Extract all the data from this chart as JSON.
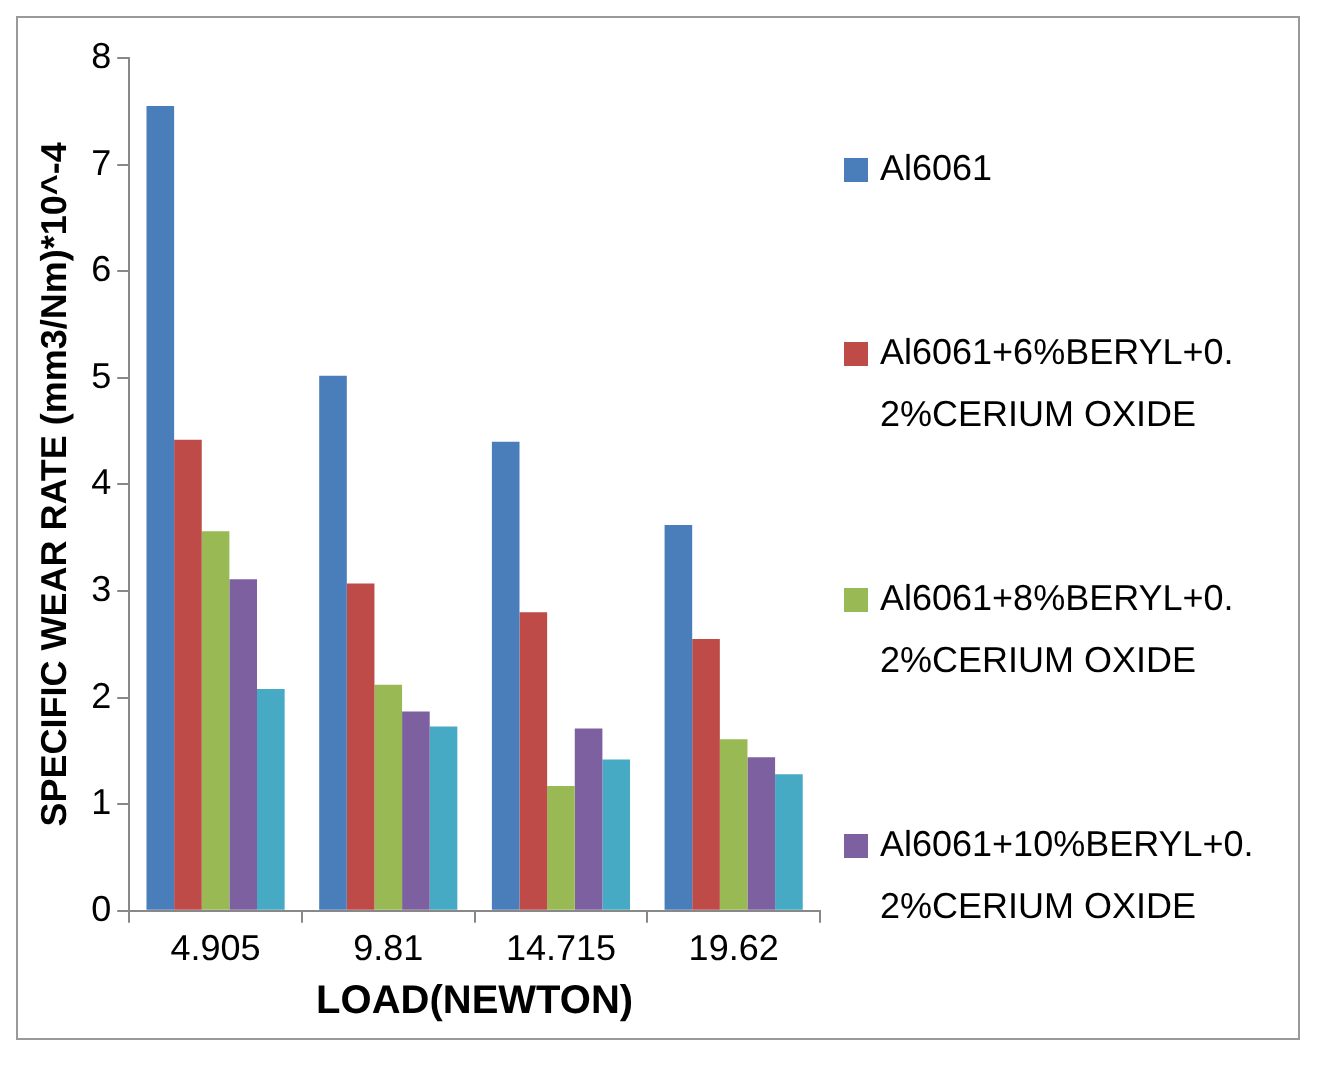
{
  "chart_data": {
    "type": "bar",
    "xlabel": "LOAD(NEWTON)",
    "ylabel": "SPECIFIC WEAR RATE (mm3/Nm)*10^-4",
    "categories": [
      "4.905",
      "9.81",
      "14.715",
      "19.62"
    ],
    "series": [
      {
        "name": "Al6061",
        "color": "#4a7ebb",
        "values": [
          7.55,
          5.02,
          4.4,
          3.62
        ]
      },
      {
        "name": "Al6061+6%BERYL+0.2%CERIUM OXIDE",
        "color": "#be4b48",
        "values": [
          4.42,
          3.07,
          2.8,
          2.55
        ]
      },
      {
        "name": "Al6061+8%BERYL+0.2%CERIUM OXIDE",
        "color": "#98b954",
        "values": [
          3.56,
          2.12,
          1.17,
          1.61
        ]
      },
      {
        "name": "Al6061+10%BERYL+0.2%CERIUM OXIDE",
        "color": "#7d60a0",
        "values": [
          3.11,
          1.87,
          1.71,
          1.44
        ]
      },
      {
        "color": "#46aac5",
        "values": [
          2.08,
          1.73,
          1.42,
          1.28
        ]
      }
    ],
    "ylim": [
      0,
      8
    ],
    "yticks": [
      0,
      1,
      2,
      3,
      4,
      5,
      6,
      7,
      8
    ],
    "grid": false,
    "legend": "right"
  }
}
